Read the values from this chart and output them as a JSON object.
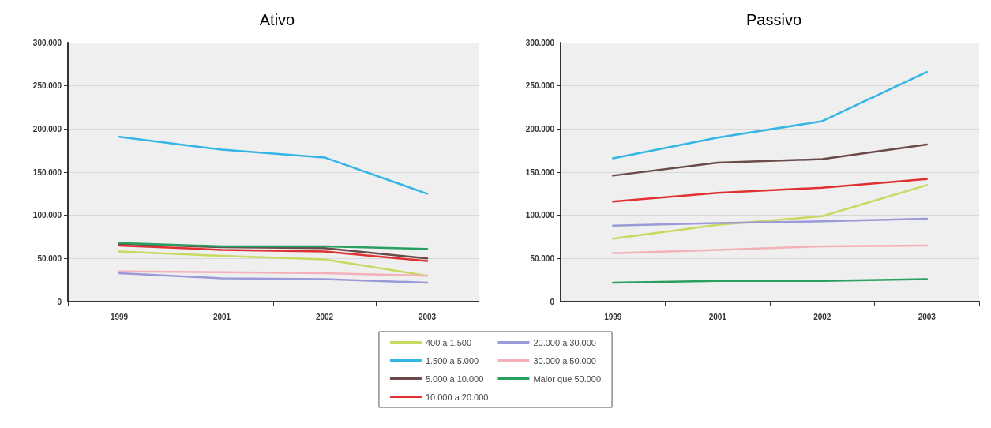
{
  "chart_data": [
    {
      "type": "line",
      "title": "Ativo",
      "categories": [
        "1999",
        "2001",
        "2002",
        "2003"
      ],
      "ylim": [
        0,
        300000
      ],
      "yticks": [
        {
          "value": 0,
          "label": "0"
        },
        {
          "value": 50000,
          "label": "50.000"
        },
        {
          "value": 100000,
          "label": "100.000"
        },
        {
          "value": 150000,
          "label": "150.000"
        },
        {
          "value": 200000,
          "label": "200.000"
        },
        {
          "value": 250000,
          "label": "250.000"
        },
        {
          "value": 300000,
          "label": "300.000"
        }
      ],
      "grid": "y",
      "legend": "bottom",
      "marker": "none",
      "series": [
        {
          "name": "400 a 1.500",
          "color": "#c8d860",
          "values": [
            58000,
            53000,
            49000,
            30000
          ]
        },
        {
          "name": "1.500 a 5.000",
          "color": "#33b5e5",
          "values": [
            191000,
            176000,
            167000,
            125000
          ]
        },
        {
          "name": "5.000 a 10.000",
          "color": "#6b4a4a",
          "values": [
            67000,
            63000,
            62000,
            50000
          ]
        },
        {
          "name": "10.000 a 20.000",
          "color": "#e03030",
          "values": [
            65000,
            60000,
            58000,
            47000
          ]
        },
        {
          "name": "20.000 a 30.000",
          "color": "#9a9ad8",
          "values": [
            33000,
            27000,
            26000,
            22000
          ]
        },
        {
          "name": "30.000 a 50.000",
          "color": "#f4b0b8",
          "values": [
            35000,
            34000,
            33000,
            30000
          ]
        },
        {
          "name": "Maior que 50.000",
          "color": "#2aa060",
          "values": [
            68000,
            64000,
            64000,
            61000
          ]
        }
      ]
    },
    {
      "type": "line",
      "title": "Passivo",
      "categories": [
        "1999",
        "2001",
        "2002",
        "2003"
      ],
      "ylim": [
        0,
        300000
      ],
      "yticks": [
        {
          "value": 0,
          "label": "0"
        },
        {
          "value": 50000,
          "label": "50.000"
        },
        {
          "value": 100000,
          "label": "100.000"
        },
        {
          "value": 150000,
          "label": "150.000"
        },
        {
          "value": 200000,
          "label": "200.000"
        },
        {
          "value": 250000,
          "label": "250.000"
        },
        {
          "value": 300000,
          "label": "300.000"
        }
      ],
      "grid": "y",
      "marker": "none",
      "series": [
        {
          "color": "#c8d860",
          "values": [
            73000,
            89000,
            99000,
            135000
          ]
        },
        {
          "color": "#33b5e5",
          "values": [
            166000,
            190000,
            209000,
            266000
          ]
        },
        {
          "color": "#6b4a4a",
          "values": [
            146000,
            161000,
            165000,
            182000
          ]
        },
        {
          "color": "#e03030",
          "values": [
            116000,
            126000,
            132000,
            142000
          ]
        },
        {
          "color": "#9a9ad8",
          "values": [
            88000,
            91000,
            93000,
            96000
          ]
        },
        {
          "color": "#f4b0b8",
          "values": [
            56000,
            60000,
            64000,
            65000
          ]
        },
        {
          "color": "#2aa060",
          "values": [
            22000,
            24000,
            24000,
            26000
          ]
        }
      ]
    }
  ]
}
